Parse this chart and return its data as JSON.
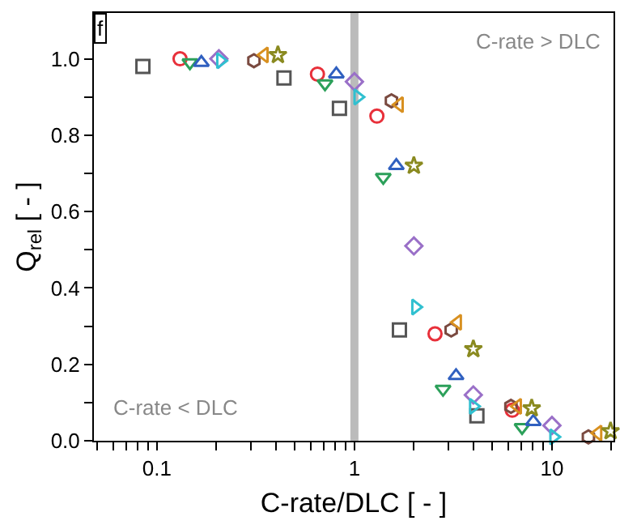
{
  "chart_data": {
    "type": "scatter",
    "xlabel": "C-rate/DLC [ - ]",
    "ylabel": "Q$_{rel}$ [ - ]",
    "log": "x",
    "grid": false,
    "xlim": [
      0.048,
      20.5
    ],
    "ylim": [
      0,
      1.12
    ],
    "xticks": [
      {
        "value": 0.05,
        "label": null
      },
      {
        "value": 0.06,
        "label": null
      },
      {
        "value": 0.07,
        "label": null
      },
      {
        "value": 0.08,
        "label": null
      },
      {
        "value": 0.09,
        "label": null
      },
      0.1,
      {
        "value": 0.2,
        "label": null
      },
      {
        "value": 0.3,
        "label": null
      },
      {
        "value": 0.4,
        "label": null
      },
      {
        "value": 0.5,
        "label": null
      },
      {
        "value": 0.6,
        "label": null
      },
      {
        "value": 0.7,
        "label": null
      },
      {
        "value": 0.8,
        "label": null
      },
      {
        "value": 0.9,
        "label": null
      },
      1,
      {
        "value": 2,
        "label": null
      },
      {
        "value": 3,
        "label": null
      },
      {
        "value": 4,
        "label": null
      },
      {
        "value": 5,
        "label": null
      },
      {
        "value": 6,
        "label": null
      },
      {
        "value": 7,
        "label": null
      },
      {
        "value": 8,
        "label": null
      },
      {
        "value": 9,
        "label": null
      },
      10,
      {
        "value": 20,
        "label": null
      }
    ],
    "yticks": [
      {
        "value": 0.0,
        "label": "0.0"
      },
      {
        "value": 0.1,
        "label": null
      },
      {
        "value": 0.2,
        "label": "0.2"
      },
      {
        "value": 0.3,
        "label": null
      },
      {
        "value": 0.4,
        "label": "0.4"
      },
      {
        "value": 0.5,
        "label": null
      },
      {
        "value": 0.6,
        "label": "0.6"
      },
      {
        "value": 0.7,
        "label": null
      },
      {
        "value": 0.8,
        "label": "0.8"
      },
      {
        "value": 0.9,
        "label": null
      },
      {
        "value": 1.0,
        "label": "1.0"
      }
    ],
    "ref_lines": [
      {
        "axis": "x",
        "value": 1,
        "color": "#bbbbbb"
      }
    ],
    "annotations": [
      "f",
      "C-rate > DLC",
      "C-rate < DLC"
    ],
    "series": [
      {
        "color": "#555555",
        "marker": "square",
        "x": [
          0.085,
          0.44,
          0.84,
          1.69,
          4.17
        ],
        "values": [
          0.98,
          0.95,
          0.87,
          0.29,
          0.065
        ]
      },
      {
        "color": "#e8303a",
        "marker": "circle",
        "x": [
          0.131,
          0.65,
          1.3,
          2.56,
          6.3
        ],
        "values": [
          1.0,
          0.96,
          0.85,
          0.28,
          0.08
        ]
      },
      {
        "color": "#2ca05a",
        "marker": "triangle",
        "x": [
          0.147,
          0.71,
          1.4,
          2.81,
          7.06
        ],
        "values": [
          0.99,
          0.935,
          0.69,
          0.135,
          0.035
        ]
      },
      {
        "color": "#3060c0",
        "marker": "triangle",
        "x": [
          0.168,
          0.81,
          1.63,
          3.27,
          8.05
        ],
        "values": [
          0.99,
          0.96,
          0.72,
          0.17,
          0.05
        ]
      },
      {
        "color": "#9a70c8",
        "marker": "diamond",
        "x": [
          0.206,
          1.0,
          2.0,
          4.0,
          10.0
        ],
        "values": [
          1.0,
          0.94,
          0.51,
          0.12,
          0.04
        ]
      },
      {
        "color": "#30c0d0",
        "marker": "triangle",
        "x": [
          0.21,
          1.04,
          2.04,
          4.0,
          10.2
        ],
        "values": [
          0.995,
          0.9,
          0.35,
          0.09,
          0.01
        ]
      },
      {
        "color": "#7a4a40",
        "marker": "circle",
        "x": [
          0.31,
          1.54,
          3.09,
          6.2,
          15.3
        ],
        "values": [
          0.995,
          0.89,
          0.29,
          0.09,
          0.01
        ]
      },
      {
        "color": "#d89020",
        "marker": "triangle",
        "x": [
          0.35,
          1.69,
          3.33,
          6.7,
          17.1
        ],
        "values": [
          1.01,
          0.88,
          0.31,
          0.09,
          0.02
        ]
      },
      {
        "color": "#8a8a20",
        "marker": "star",
        "x": [
          0.41,
          2.0,
          4.0,
          7.9,
          19.8
        ],
        "values": [
          1.01,
          0.72,
          0.24,
          0.085,
          0.025
        ]
      }
    ]
  }
}
